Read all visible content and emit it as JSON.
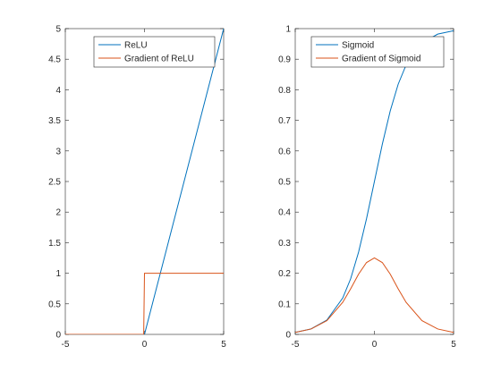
{
  "chart_data": [
    {
      "type": "line",
      "xlim": [
        -5,
        5
      ],
      "ylim": [
        0,
        5
      ],
      "xticks": [
        -5,
        0,
        5
      ],
      "yticks": [
        0,
        0.5,
        1,
        1.5,
        2,
        2.5,
        3,
        3.5,
        4,
        4.5,
        5
      ],
      "xticklabels": [
        "-5",
        "0",
        "5"
      ],
      "yticklabels": [
        "0",
        "0.5",
        "1",
        "1.5",
        "2",
        "2.5",
        "3",
        "3.5",
        "4",
        "4.5",
        "5"
      ],
      "grid": false,
      "legend_position": "top-right",
      "series": [
        {
          "name": "ReLU",
          "color": "#0072BD",
          "x": [
            -5,
            0,
            5
          ],
          "y": [
            0,
            0,
            5
          ]
        },
        {
          "name": "Gradient of ReLU",
          "color": "#D95319",
          "x": [
            -5,
            -0.05,
            0,
            5
          ],
          "y": [
            0,
            0,
            1,
            1
          ]
        }
      ]
    },
    {
      "type": "line",
      "xlim": [
        -5,
        5
      ],
      "ylim": [
        0,
        1
      ],
      "xticks": [
        -5,
        0,
        5
      ],
      "yticks": [
        0,
        0.1,
        0.2,
        0.3,
        0.4,
        0.5,
        0.6,
        0.7,
        0.8,
        0.9,
        1
      ],
      "xticklabels": [
        "-5",
        "0",
        "5"
      ],
      "yticklabels": [
        "0",
        "0.1",
        "0.2",
        "0.3",
        "0.4",
        "0.5",
        "0.6",
        "0.7",
        "0.8",
        "0.9",
        "1"
      ],
      "grid": false,
      "legend_position": "top-right",
      "series": [
        {
          "name": "Sigmoid",
          "color": "#0072BD",
          "x": [
            -5,
            -4,
            -3,
            -2,
            -1.5,
            -1,
            -0.5,
            0,
            0.5,
            1,
            1.5,
            2,
            3,
            4,
            5
          ],
          "y": [
            0.0067,
            0.018,
            0.047,
            0.119,
            0.182,
            0.269,
            0.378,
            0.5,
            0.622,
            0.731,
            0.818,
            0.881,
            0.953,
            0.982,
            0.993
          ]
        },
        {
          "name": "Gradient of Sigmoid",
          "color": "#D95319",
          "x": [
            -5,
            -4,
            -3,
            -2,
            -1.5,
            -1,
            -0.5,
            0,
            0.5,
            1,
            1.5,
            2,
            3,
            4,
            5
          ],
          "y": [
            0.0066,
            0.0177,
            0.0452,
            0.105,
            0.149,
            0.197,
            0.235,
            0.25,
            0.235,
            0.197,
            0.149,
            0.105,
            0.0452,
            0.0177,
            0.0066
          ]
        }
      ]
    }
  ]
}
